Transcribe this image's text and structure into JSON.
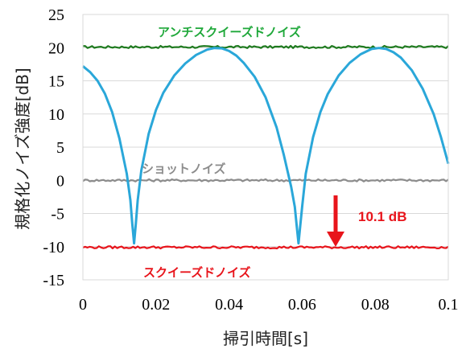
{
  "chart_data": {
    "type": "line",
    "xlabel": "掃引時間[s]",
    "ylabel": "規格化ノイズ強度[dB]",
    "xlim": [
      0,
      0.1
    ],
    "ylim": [
      -15,
      25
    ],
    "x_ticks": [
      "0",
      "0.02",
      "0.04",
      "0.06",
      "0.08",
      "0.1"
    ],
    "y_ticks": [
      "25",
      "20",
      "15",
      "10",
      "5",
      "0",
      "-5",
      "-10",
      "-15"
    ],
    "grid": "horizontal",
    "series": [
      {
        "name": "アンチスクイーズドノイズ",
        "color": "#1e7a1e",
        "x": [
          0,
          0.1
        ],
        "y": [
          20.1,
          20.1
        ]
      },
      {
        "name": "ショットノイズ",
        "color": "#8c8c8c",
        "x": [
          0,
          0.1
        ],
        "y": [
          0,
          0
        ]
      },
      {
        "name": "スクイーズドノイズ",
        "color": "#e8141b",
        "x": [
          0,
          0.1
        ],
        "y": [
          -10.1,
          -10.1
        ]
      },
      {
        "name": "",
        "color": "#2aa7d9",
        "x": [
          0,
          0.002,
          0.004,
          0.006,
          0.008,
          0.01,
          0.012,
          0.013,
          0.0135,
          0.014,
          0.0145,
          0.015,
          0.016,
          0.018,
          0.02,
          0.022,
          0.025,
          0.028,
          0.031,
          0.034,
          0.036,
          0.038,
          0.04,
          0.042,
          0.044,
          0.047,
          0.05,
          0.053,
          0.055,
          0.057,
          0.058,
          0.0585,
          0.059,
          0.0595,
          0.06,
          0.061,
          0.063,
          0.065,
          0.067,
          0.07,
          0.073,
          0.076,
          0.079,
          0.081,
          0.083,
          0.085,
          0.087,
          0.09,
          0.093,
          0.096,
          0.098,
          0.1
        ],
        "y": [
          17.2,
          16.3,
          15.0,
          13.1,
          10.3,
          6.3,
          1.0,
          -3.0,
          -6.5,
          -9.5,
          -6.5,
          -3.0,
          1.5,
          7.0,
          10.6,
          13.2,
          15.8,
          17.6,
          18.9,
          19.7,
          19.95,
          19.9,
          19.5,
          18.8,
          17.7,
          15.6,
          12.5,
          8.0,
          3.8,
          -1.0,
          -4.0,
          -6.8,
          -9.5,
          -6.8,
          -4.0,
          1.0,
          6.5,
          10.3,
          13.0,
          15.8,
          17.7,
          19.0,
          19.8,
          19.95,
          19.8,
          19.3,
          18.5,
          16.6,
          13.8,
          10.0,
          6.5,
          2.5
        ]
      }
    ],
    "annotations": [
      {
        "text": "10.1 dB",
        "color": "#e8141b"
      }
    ]
  }
}
